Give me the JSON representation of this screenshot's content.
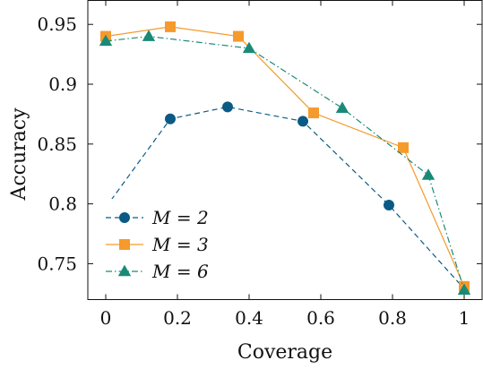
{
  "chart_data": {
    "type": "line",
    "xlabel": "Coverage",
    "ylabel": "Accuracy",
    "xlim": [
      -0.05,
      1.05
    ],
    "ylim": [
      0.72,
      0.97
    ],
    "xticks": [
      0,
      0.2,
      0.4,
      0.6,
      0.8,
      1
    ],
    "xtick_labels": [
      "0",
      "0.2",
      "0.4",
      "0.6",
      "0.8",
      "1"
    ],
    "yticks": [
      0.75,
      0.8,
      0.85,
      0.9,
      0.95
    ],
    "ytick_labels": [
      "0.75",
      "0.8",
      "0.85",
      "0.9",
      "0.95"
    ],
    "grid": false,
    "legend_position": "bottom-left",
    "series": [
      {
        "name": "M = 2",
        "color": "#0b5a86",
        "marker": "circle",
        "line_style": "dashed",
        "x": [
          0,
          0.18,
          0.34,
          0.55,
          0.79,
          1.0
        ],
        "y": [
          0.797,
          0.871,
          0.881,
          0.869,
          0.799,
          0.729
        ]
      },
      {
        "name": "M = 3",
        "color": "#f59a2c",
        "marker": "square",
        "line_style": "solid",
        "x": [
          0,
          0.18,
          0.37,
          0.58,
          0.83,
          1.0
        ],
        "y": [
          0.94,
          0.948,
          0.94,
          0.876,
          0.847,
          0.731
        ]
      },
      {
        "name": "M = 6",
        "color": "#1a8a78",
        "marker": "triangle",
        "line_style": "dashdot",
        "x": [
          0,
          0.12,
          0.4,
          0.66,
          0.9,
          1.0
        ],
        "y": [
          0.936,
          0.94,
          0.93,
          0.88,
          0.824,
          0.728
        ]
      }
    ]
  }
}
